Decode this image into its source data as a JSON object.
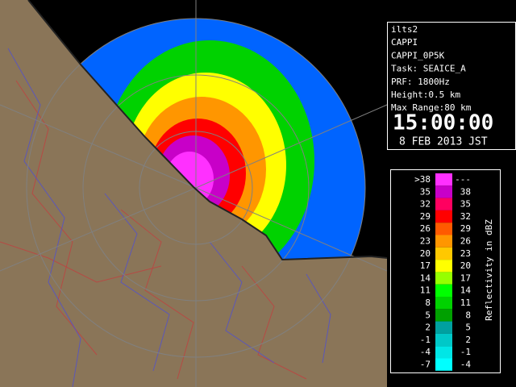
{
  "info": {
    "lines": [
      "ilts2",
      "CAPPI",
      "CAPPI_0P5K",
      "Task: SEAICE_A",
      "PRF: 1800Hz",
      "Height:0.5 km",
      "Max Range:80 km"
    ],
    "time": "15:00:00",
    "date": "8 FEB 2013 JST"
  },
  "legend": {
    "title": "Reflectivity in dBZ",
    "rows": [
      {
        "low": ">38",
        "high": "---",
        "color": "#ff30ff"
      },
      {
        "low": "35",
        "high": "38",
        "color": "#c800c8"
      },
      {
        "low": "32",
        "high": "35",
        "color": "#ff0060"
      },
      {
        "low": "29",
        "high": "32",
        "color": "#ff0000"
      },
      {
        "low": "26",
        "high": "29",
        "color": "#ff5a00"
      },
      {
        "low": "23",
        "high": "26",
        "color": "#ff9600"
      },
      {
        "low": "20",
        "high": "23",
        "color": "#ffc800"
      },
      {
        "low": "17",
        "high": "20",
        "color": "#ffff00"
      },
      {
        "low": "14",
        "high": "17",
        "color": "#96ff00"
      },
      {
        "low": "11",
        "high": "14",
        "color": "#00ff00"
      },
      {
        "low": "8",
        "high": "11",
        "color": "#00d200"
      },
      {
        "low": "5",
        "high": "8",
        "color": "#00a000"
      },
      {
        "low": "2",
        "high": "5",
        "color": "#00a0a0"
      },
      {
        "low": "-1",
        "high": "2",
        "color": "#00c8c8"
      },
      {
        "low": "-4",
        "high": "-1",
        "color": "#00e6e6"
      },
      {
        "low": "-7",
        "high": "-4",
        "color": "#00ffff"
      }
    ]
  }
}
